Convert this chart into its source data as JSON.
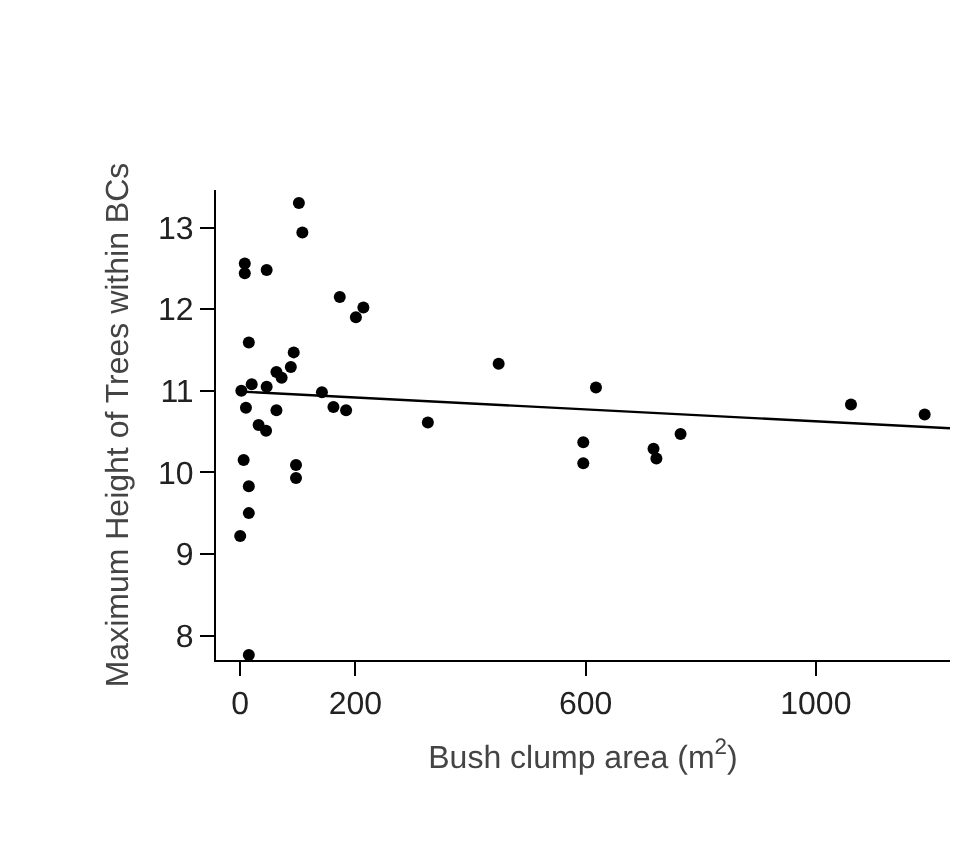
{
  "chart_data": {
    "type": "scatter",
    "xlabel": "Bush clump area (m$^{2}$)",
    "ylabel": "Maximum Height of Trees within BCs",
    "xlim": [
      -42,
      1233
    ],
    "ylim": [
      7.7,
      13.46
    ],
    "xticks": [
      0,
      200,
      600,
      1000
    ],
    "yticks": [
      8,
      9,
      10,
      11,
      12,
      13
    ],
    "marker": "circle",
    "series": [
      {
        "color": "#000000",
        "x": [
          2,
          8,
          8,
          46,
          15,
          20,
          10,
          46,
          32,
          45,
          63,
          63,
          72,
          88,
          93,
          102,
          108,
          97,
          97,
          6,
          15,
          15,
          0,
          15,
          142,
          162,
          184,
          173,
          201,
          214,
          326,
          449,
          618,
          596,
          596,
          718,
          723,
          765,
          1061,
          1189
        ],
        "values": [
          11.0,
          12.56,
          12.44,
          12.48,
          11.59,
          11.08,
          10.79,
          11.05,
          10.58,
          10.51,
          10.76,
          11.23,
          11.16,
          11.29,
          11.47,
          13.3,
          12.94,
          10.09,
          9.93,
          10.15,
          9.83,
          9.5,
          9.22,
          7.76,
          10.98,
          10.8,
          10.76,
          12.15,
          11.9,
          12.02,
          10.61,
          11.33,
          11.04,
          10.37,
          10.11,
          10.29,
          10.17,
          10.47,
          10.83,
          10.71
        ]
      },
      {
        "type": "line",
        "color": "#000000",
        "marker": "none",
        "line_style": "solid",
        "x": [
          0,
          1233
        ],
        "values": [
          10.99,
          10.54
        ]
      }
    ]
  }
}
